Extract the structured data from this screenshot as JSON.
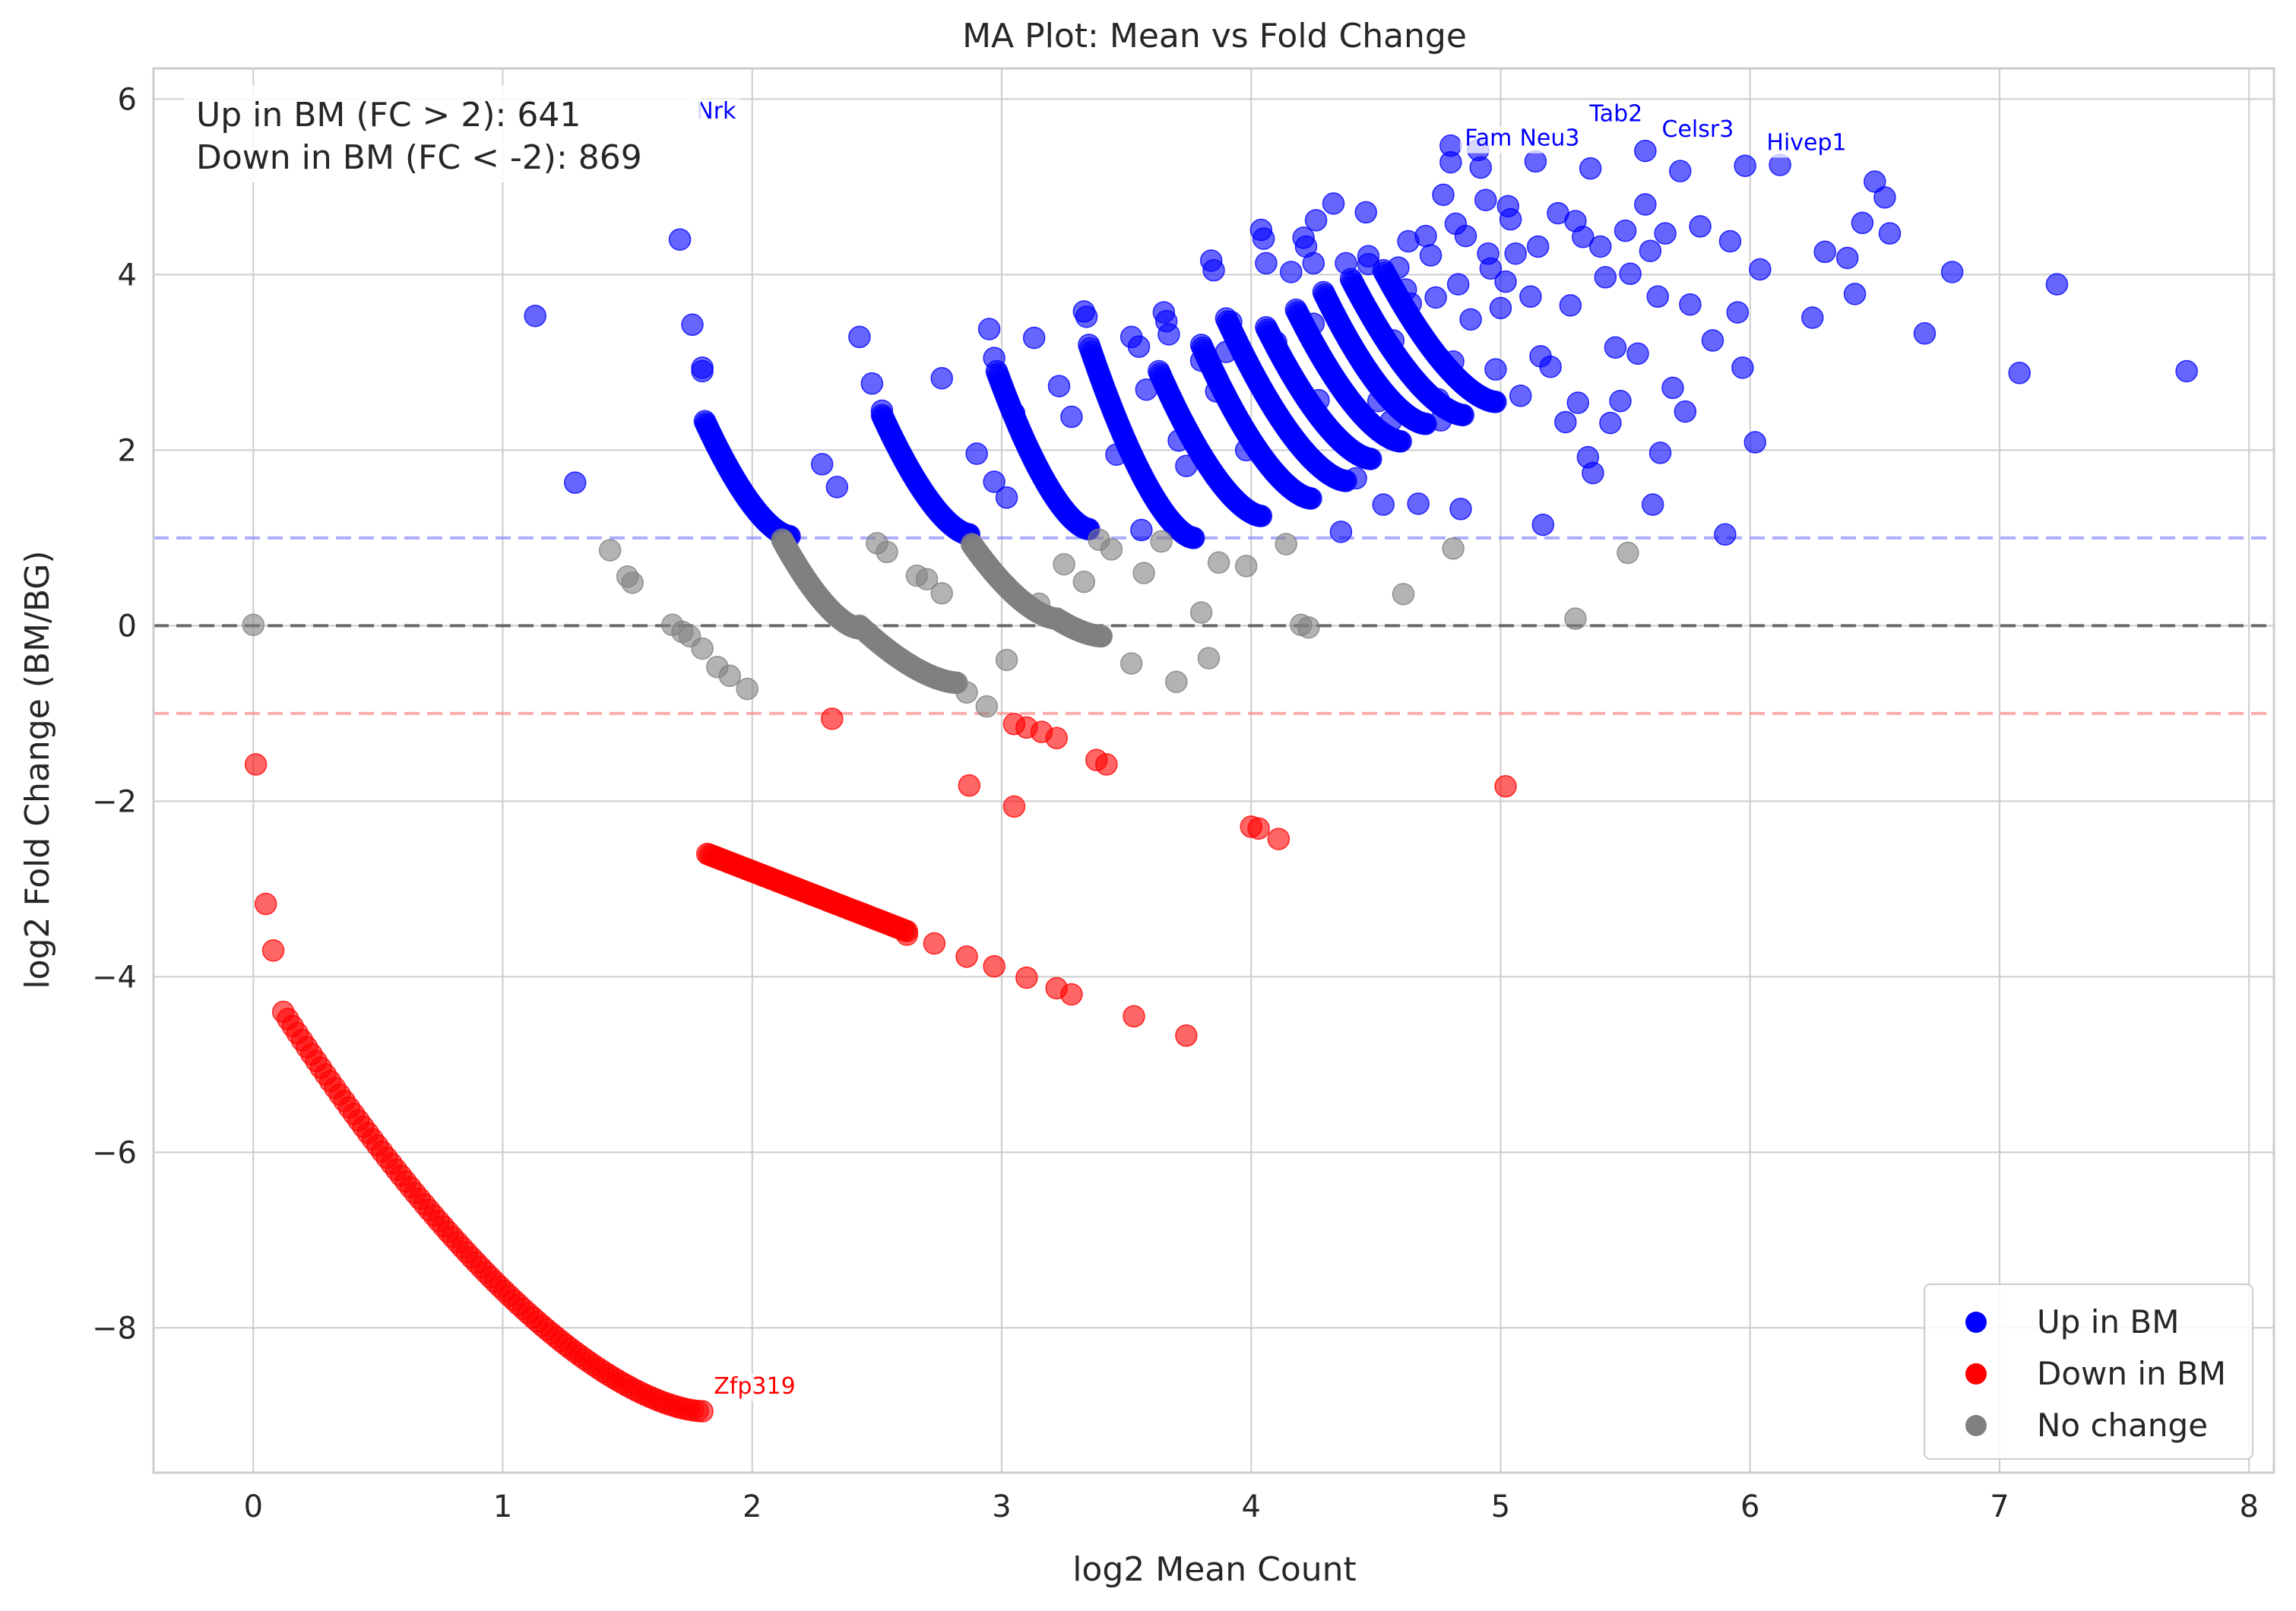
{
  "chart_data": {
    "type": "scatter",
    "title": "MA Plot: Mean vs Fold Change",
    "xlabel": "log2 Mean Count",
    "ylabel": "log2 Fold Change (BM/BG)",
    "xlim": [
      -0.4,
      8.1
    ],
    "ylim": [
      -9.65,
      6.35
    ],
    "xticks": [
      0,
      1,
      2,
      3,
      4,
      5,
      6,
      7,
      8
    ],
    "yticks": [
      -8,
      -6,
      -4,
      -2,
      0,
      2,
      4,
      6
    ],
    "ytick_labels": [
      "−8",
      "−6",
      "−4",
      "−2",
      "0",
      "2",
      "4",
      "6"
    ],
    "grid": true,
    "legend_position": "bottom-right",
    "reference_lines": [
      {
        "y": 1,
        "color": "#8080ff",
        "style": "dashed"
      },
      {
        "y": 0,
        "color": "#555555",
        "style": "dashed"
      },
      {
        "y": -1,
        "color": "#ff8080",
        "style": "dashed"
      }
    ],
    "summary": [
      "Up in BM (FC > 2): 641",
      "Down in BM (FC < -2): 869"
    ],
    "series": [
      {
        "name": "Up in BM",
        "color": "#0000ff",
        "points": [
          [
            1.13,
            3.53
          ],
          [
            1.29,
            1.63
          ],
          [
            1.71,
            4.4
          ],
          [
            1.76,
            3.43
          ],
          [
            1.8,
            2.94
          ],
          [
            1.8,
            2.9
          ],
          [
            2.28,
            1.84
          ],
          [
            2.34,
            1.58
          ],
          [
            2.43,
            3.29
          ],
          [
            2.48,
            2.76
          ],
          [
            2.52,
            2.45
          ],
          [
            2.76,
            2.82
          ],
          [
            2.9,
            1.96
          ],
          [
            2.95,
            3.38
          ],
          [
            2.97,
            3.05
          ],
          [
            2.97,
            1.64
          ],
          [
            3.02,
            1.46
          ],
          [
            3.05,
            2.42
          ],
          [
            3.13,
            3.28
          ],
          [
            3.23,
            2.73
          ],
          [
            3.28,
            2.38
          ],
          [
            3.33,
            3.58
          ],
          [
            3.34,
            3.52
          ],
          [
            3.46,
            1.95
          ],
          [
            3.52,
            3.29
          ],
          [
            3.55,
            3.18
          ],
          [
            3.56,
            1.09
          ],
          [
            3.58,
            2.69
          ],
          [
            3.65,
            3.57
          ],
          [
            3.66,
            3.47
          ],
          [
            3.67,
            3.32
          ],
          [
            3.71,
            2.11
          ],
          [
            3.74,
            1.82
          ],
          [
            3.8,
            3.02
          ],
          [
            3.84,
            4.16
          ],
          [
            3.85,
            4.05
          ],
          [
            3.86,
            2.67
          ],
          [
            3.9,
            3.12
          ],
          [
            3.92,
            3.46
          ],
          [
            3.98,
            2.0
          ],
          [
            4.04,
            4.51
          ],
          [
            4.06,
            4.13
          ],
          [
            4.1,
            3.23
          ],
          [
            4.16,
            4.03
          ],
          [
            4.21,
            4.42
          ],
          [
            4.22,
            4.32
          ],
          [
            4.25,
            3.44
          ],
          [
            4.25,
            4.13
          ],
          [
            4.27,
            2.57
          ],
          [
            4.36,
            1.07
          ],
          [
            4.42,
            1.68
          ],
          [
            4.46,
            4.71
          ],
          [
            4.47,
            4.21
          ],
          [
            4.47,
            4.12
          ],
          [
            4.51,
            2.56
          ],
          [
            4.53,
            1.38
          ],
          [
            4.56,
            2.33
          ],
          [
            4.57,
            3.25
          ],
          [
            4.59,
            4.08
          ],
          [
            4.62,
            3.83
          ],
          [
            4.63,
            4.38
          ],
          [
            4.64,
            3.67
          ],
          [
            4.67,
            1.39
          ],
          [
            4.7,
            4.44
          ],
          [
            4.72,
            4.22
          ],
          [
            4.74,
            3.74
          ],
          [
            4.75,
            2.58
          ],
          [
            4.76,
            2.34
          ],
          [
            4.77,
            4.91
          ],
          [
            4.8,
            5.47
          ],
          [
            4.8,
            5.28
          ],
          [
            4.81,
            3.01
          ],
          [
            4.82,
            4.58
          ],
          [
            4.83,
            3.89
          ],
          [
            4.84,
            1.33
          ],
          [
            4.86,
            4.44
          ],
          [
            4.88,
            3.49
          ],
          [
            4.91,
            5.42
          ],
          [
            4.92,
            5.22
          ],
          [
            4.94,
            4.85
          ],
          [
            4.95,
            4.24
          ],
          [
            4.96,
            4.07
          ],
          [
            4.98,
            2.92
          ],
          [
            5.0,
            3.62
          ],
          [
            5.02,
            3.92
          ],
          [
            5.03,
            4.78
          ],
          [
            5.04,
            4.63
          ],
          [
            5.06,
            4.24
          ],
          [
            5.08,
            2.62
          ],
          [
            5.12,
            3.75
          ],
          [
            5.14,
            5.29
          ],
          [
            5.15,
            4.32
          ],
          [
            5.16,
            3.07
          ],
          [
            5.17,
            1.15
          ],
          [
            5.2,
            2.95
          ],
          [
            5.23,
            4.7
          ],
          [
            5.26,
            2.32
          ],
          [
            5.28,
            3.65
          ],
          [
            5.3,
            4.61
          ],
          [
            5.31,
            2.54
          ],
          [
            5.33,
            4.43
          ],
          [
            5.35,
            1.92
          ],
          [
            5.36,
            5.21
          ],
          [
            5.37,
            1.74
          ],
          [
            5.4,
            4.32
          ],
          [
            5.42,
            3.97
          ],
          [
            5.44,
            2.31
          ],
          [
            5.46,
            3.17
          ],
          [
            5.48,
            2.56
          ],
          [
            5.5,
            4.5
          ],
          [
            5.52,
            4.01
          ],
          [
            5.55,
            3.1
          ],
          [
            5.58,
            5.41
          ],
          [
            5.58,
            4.8
          ],
          [
            5.6,
            4.27
          ],
          [
            5.61,
            1.38
          ],
          [
            5.63,
            3.75
          ],
          [
            5.64,
            1.97
          ],
          [
            5.66,
            4.47
          ],
          [
            5.69,
            2.71
          ],
          [
            5.72,
            5.18
          ],
          [
            5.74,
            2.44
          ],
          [
            5.76,
            3.66
          ],
          [
            5.8,
            4.55
          ],
          [
            5.85,
            3.25
          ],
          [
            5.9,
            1.04
          ],
          [
            5.92,
            4.38
          ],
          [
            5.95,
            3.57
          ],
          [
            5.97,
            2.94
          ],
          [
            5.98,
            5.24
          ],
          [
            6.02,
            2.09
          ],
          [
            6.04,
            4.06
          ],
          [
            6.12,
            5.25
          ],
          [
            6.25,
            3.51
          ],
          [
            6.3,
            4.26
          ],
          [
            6.39,
            4.19
          ],
          [
            6.42,
            3.78
          ],
          [
            6.45,
            4.59
          ],
          [
            6.5,
            5.06
          ],
          [
            6.54,
            4.88
          ],
          [
            6.56,
            4.47
          ],
          [
            6.7,
            3.33
          ],
          [
            6.81,
            4.03
          ],
          [
            7.08,
            2.88
          ],
          [
            7.23,
            3.89
          ],
          [
            7.75,
            2.9
          ],
          [
            4.26,
            4.62
          ],
          [
            4.38,
            4.13
          ],
          [
            4.05,
            4.41
          ],
          [
            4.33,
            4.81
          ]
        ]
      },
      {
        "name": "Down in BM",
        "color": "#ff0000",
        "points": [
          [
            0.01,
            -1.58
          ],
          [
            0.05,
            -3.17
          ],
          [
            0.08,
            -3.7
          ],
          [
            2.32,
            -1.06
          ],
          [
            3.05,
            -1.12
          ],
          [
            3.1,
            -1.16
          ],
          [
            3.16,
            -1.21
          ],
          [
            3.22,
            -1.28
          ],
          [
            3.38,
            -1.53
          ],
          [
            3.42,
            -1.58
          ],
          [
            2.87,
            -1.82
          ],
          [
            3.05,
            -2.06
          ],
          [
            5.02,
            -1.83
          ],
          [
            4.0,
            -2.29
          ],
          [
            4.03,
            -2.31
          ],
          [
            4.11,
            -2.43
          ],
          [
            3.1,
            -4.01
          ],
          [
            3.22,
            -4.13
          ],
          [
            3.28,
            -4.2
          ],
          [
            3.53,
            -4.45
          ],
          [
            3.74,
            -4.67
          ],
          [
            2.62,
            -3.52
          ],
          [
            2.73,
            -3.62
          ],
          [
            2.86,
            -3.77
          ],
          [
            2.97,
            -3.88
          ]
        ]
      },
      {
        "name": "No change",
        "color": "#808080",
        "points": [
          [
            0.0,
            0.01
          ],
          [
            1.43,
            0.86
          ],
          [
            1.5,
            0.56
          ],
          [
            1.52,
            0.49
          ],
          [
            1.68,
            0.01
          ],
          [
            1.72,
            -0.07
          ],
          [
            1.75,
            -0.12
          ],
          [
            1.8,
            -0.26
          ],
          [
            1.86,
            -0.47
          ],
          [
            1.91,
            -0.57
          ],
          [
            1.98,
            -0.72
          ],
          [
            2.5,
            0.94
          ],
          [
            2.54,
            0.84
          ],
          [
            2.66,
            0.57
          ],
          [
            2.7,
            0.53
          ],
          [
            2.76,
            0.37
          ],
          [
            2.86,
            -0.76
          ],
          [
            2.94,
            -0.92
          ],
          [
            3.02,
            -0.39
          ],
          [
            3.15,
            0.25
          ],
          [
            3.25,
            0.7
          ],
          [
            3.33,
            0.5
          ],
          [
            3.39,
            0.98
          ],
          [
            3.44,
            0.87
          ],
          [
            3.52,
            -0.43
          ],
          [
            3.57,
            0.6
          ],
          [
            3.64,
            0.96
          ],
          [
            3.7,
            -0.64
          ],
          [
            3.8,
            0.15
          ],
          [
            3.83,
            -0.37
          ],
          [
            3.87,
            0.72
          ],
          [
            3.98,
            0.68
          ],
          [
            4.14,
            0.93
          ],
          [
            4.2,
            0.01
          ],
          [
            4.23,
            -0.02
          ],
          [
            4.61,
            0.36
          ],
          [
            4.81,
            0.88
          ],
          [
            5.3,
            0.08
          ],
          [
            5.51,
            0.83
          ]
        ]
      }
    ],
    "curves": [
      {
        "series": "Up in BM",
        "x_range": [
          1.81,
          2.15
        ],
        "shape": "decay",
        "y_range": [
          2.33,
          1.02
        ]
      },
      {
        "series": "Up in BM",
        "x_range": [
          2.52,
          2.87
        ],
        "shape": "decay",
        "y_range": [
          2.4,
          1.04
        ]
      },
      {
        "series": "Up in BM",
        "x_range": [
          2.98,
          3.35
        ],
        "shape": "decay",
        "y_range": [
          2.9,
          1.1
        ]
      },
      {
        "series": "Up in BM",
        "x_range": [
          3.35,
          3.77
        ],
        "shape": "decay",
        "y_range": [
          3.2,
          1.0
        ]
      },
      {
        "series": "Up in BM",
        "x_range": [
          3.63,
          4.04
        ],
        "shape": "decay",
        "y_range": [
          2.9,
          1.25
        ]
      },
      {
        "series": "Up in BM",
        "x_range": [
          3.8,
          4.24
        ],
        "shape": "decay",
        "y_range": [
          3.2,
          1.45
        ]
      },
      {
        "series": "Up in BM",
        "x_range": [
          3.9,
          4.38
        ],
        "shape": "decay",
        "y_range": [
          3.5,
          1.65
        ]
      },
      {
        "series": "Up in BM",
        "x_range": [
          4.06,
          4.48
        ],
        "shape": "decay",
        "y_range": [
          3.4,
          1.9
        ]
      },
      {
        "series": "Up in BM",
        "x_range": [
          4.18,
          4.6
        ],
        "shape": "decay",
        "y_range": [
          3.6,
          2.1
        ]
      },
      {
        "series": "Up in BM",
        "x_range": [
          4.29,
          4.7
        ],
        "shape": "decay",
        "y_range": [
          3.8,
          2.3
        ]
      },
      {
        "series": "Up in BM",
        "x_range": [
          4.4,
          4.85
        ],
        "shape": "decay",
        "y_range": [
          3.95,
          2.4
        ]
      },
      {
        "series": "Up in BM",
        "x_range": [
          4.53,
          4.98
        ],
        "shape": "decay",
        "y_range": [
          4.05,
          2.55
        ]
      },
      {
        "series": "No change",
        "x_range": [
          2.12,
          2.43
        ],
        "shape": "decay",
        "y_range": [
          0.98,
          -0.03
        ]
      },
      {
        "series": "No change",
        "x_range": [
          2.43,
          2.82
        ],
        "shape": "decay",
        "y_range": [
          0.0,
          -0.65
        ]
      },
      {
        "series": "No change",
        "x_range": [
          2.88,
          3.22
        ],
        "shape": "decay",
        "y_range": [
          0.93,
          0.08
        ]
      },
      {
        "series": "No change",
        "x_range": [
          3.22,
          3.4
        ],
        "shape": "decay",
        "y_range": [
          0.08,
          -0.12
        ]
      },
      {
        "series": "Down in BM",
        "x_range": [
          0.12,
          1.8
        ],
        "shape": "decay",
        "y_range": [
          -4.4,
          -8.95
        ]
      },
      {
        "series": "Down in BM",
        "x_range": [
          1.82,
          2.62
        ],
        "shape": "linear",
        "y_range": [
          -2.6,
          -3.48
        ]
      }
    ],
    "annotations": [
      {
        "text": "Nrk",
        "x": 1.77,
        "y": 5.78,
        "color": "#0000ff"
      },
      {
        "text": "Tab2",
        "x": 5.35,
        "y": 5.75,
        "color": "#0000ff"
      },
      {
        "text": "Fam",
        "x": 4.85,
        "y": 5.47,
        "color": "#0000ff"
      },
      {
        "text": "Neu3",
        "x": 5.07,
        "y": 5.47,
        "color": "#0000ff"
      },
      {
        "text": "Celsr3",
        "x": 5.64,
        "y": 5.57,
        "color": "#0000ff"
      },
      {
        "text": "Hivep1",
        "x": 6.06,
        "y": 5.42,
        "color": "#0000ff"
      },
      {
        "text": "Zfp319",
        "x": 1.84,
        "y": -8.75,
        "color": "#ff0000"
      }
    ],
    "legend": [
      {
        "label": "Up in BM",
        "color": "#0000ff"
      },
      {
        "label": "Down in BM",
        "color": "#ff0000"
      },
      {
        "label": "No change",
        "color": "#808080"
      }
    ]
  }
}
